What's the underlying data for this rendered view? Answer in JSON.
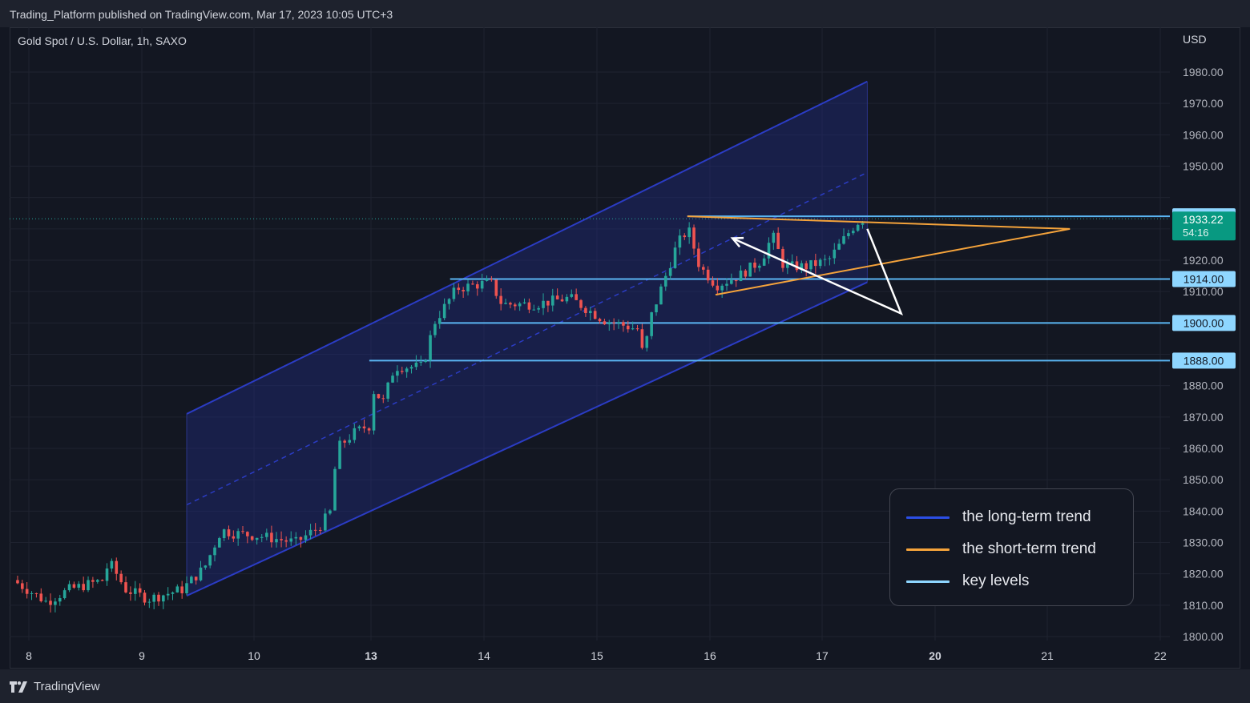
{
  "header": {
    "published": "Trading_Platform published on TradingView.com, Mar 17, 2023 10:05 UTC+3"
  },
  "symbol_label": "Gold Spot / U.S. Dollar, 1h, SAXO",
  "currency": "USD",
  "brand": {
    "name": "TradingView",
    "icon": "tradingview-logo-icon"
  },
  "legend": [
    {
      "label": "the long-term trend",
      "color": "#2b4ee6"
    },
    {
      "label": "the short-term trend",
      "color": "#f5a33b"
    },
    {
      "label": "key levels",
      "color": "#8ed6ff"
    }
  ],
  "colors": {
    "up": "#26a69a",
    "down": "#ef5350",
    "background": "#131722",
    "channel": "#2b3cc4",
    "orange": "#f5a33b",
    "level": "#5ab5f2"
  },
  "chart_data": {
    "type": "candlestick",
    "title": "Gold Spot / U.S. Dollar, 1h, SAXO",
    "y_unit": "USD",
    "ylim": [
      1800,
      1985
    ],
    "y_ticks": [
      "1980.00",
      "1970.00",
      "1960.00",
      "1950.00",
      "1920.00",
      "1910.00",
      "1880.00",
      "1870.00",
      "1860.00",
      "1850.00",
      "1840.00",
      "1830.00",
      "1820.00",
      "1810.00",
      "1800.00"
    ],
    "x_tick_labels": [
      {
        "label": "8",
        "bold": false
      },
      {
        "label": "9",
        "bold": false
      },
      {
        "label": "10",
        "bold": false
      },
      {
        "label": "13",
        "bold": true
      },
      {
        "label": "14",
        "bold": false
      },
      {
        "label": "15",
        "bold": false
      },
      {
        "label": "16",
        "bold": false
      },
      {
        "label": "17",
        "bold": false
      },
      {
        "label": "20",
        "bold": true
      },
      {
        "label": "21",
        "bold": false
      },
      {
        "label": "22",
        "bold": false
      }
    ],
    "x_tick_days": [
      8,
      9,
      10,
      13,
      14,
      15,
      16,
      17,
      20,
      21,
      22
    ],
    "key_levels": [
      {
        "price": 1934.0,
        "label": "1934.00",
        "from_day": 15.8
      },
      {
        "price": 1914.0,
        "label": "1914.00",
        "from_day": 13.7
      },
      {
        "price": 1900.0,
        "label": "1900.00",
        "from_day": 13.6
      },
      {
        "price": 1888.0,
        "label": "1888.00",
        "from_day": 12.97
      }
    ],
    "last_price": {
      "label": "1933.22",
      "countdown": "54:16",
      "price": 1933.22
    },
    "channel": {
      "start_day": 9.4,
      "end_day": 17.4,
      "lower": [
        1813,
        1913
      ],
      "upper": [
        1871,
        1977
      ],
      "mid": [
        1842,
        1948
      ]
    },
    "triangle": {
      "top": [
        [
          15.8,
          1934
        ],
        [
          21.2,
          1930
        ]
      ],
      "bottom": [
        [
          16.05,
          1909
        ],
        [
          21.2,
          1930
        ]
      ]
    },
    "projection": [
      [
        17.4,
        1930
      ],
      [
        17.7,
        1903
      ],
      [
        18.2,
        1927
      ]
    ],
    "path": [
      [
        7.9,
        1818
      ],
      [
        8.2,
        1811
      ],
      [
        8.4,
        1815
      ],
      [
        8.7,
        1818
      ],
      [
        8.75,
        1824
      ],
      [
        8.9,
        1815
      ],
      [
        9.1,
        1812
      ],
      [
        9.4,
        1815
      ],
      [
        9.6,
        1822
      ],
      [
        9.75,
        1834
      ],
      [
        9.85,
        1833
      ],
      [
        10.1,
        1832
      ],
      [
        10.4,
        1830
      ],
      [
        10.6,
        1835
      ],
      [
        10.7,
        1840
      ],
      [
        10.75,
        1860
      ],
      [
        10.9,
        1865
      ],
      [
        11,
        1867
      ],
      [
        13.02,
        1880
      ],
      [
        13.15,
        1875
      ],
      [
        13.25,
        1886
      ],
      [
        13.5,
        1886
      ],
      [
        13.6,
        1900
      ],
      [
        13.8,
        1911
      ],
      [
        14.1,
        1913
      ],
      [
        14.2,
        1906
      ],
      [
        14.5,
        1906
      ],
      [
        14.8,
        1908
      ],
      [
        15.1,
        1901
      ],
      [
        15.4,
        1898
      ],
      [
        15.46,
        1888
      ],
      [
        15.5,
        1900
      ],
      [
        15.65,
        1915
      ],
      [
        15.75,
        1925
      ],
      [
        15.85,
        1930
      ],
      [
        15.95,
        1918
      ],
      [
        16.1,
        1912
      ],
      [
        16.3,
        1915
      ],
      [
        16.5,
        1920
      ],
      [
        16.6,
        1928
      ],
      [
        16.7,
        1918
      ],
      [
        16.9,
        1918
      ],
      [
        17.1,
        1920
      ],
      [
        17.3,
        1930
      ],
      [
        17.38,
        1933
      ]
    ]
  }
}
